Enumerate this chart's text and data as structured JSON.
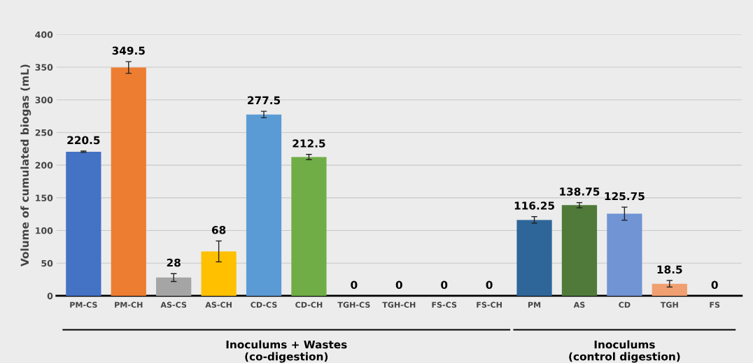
{
  "chart_data": {
    "type": "bar",
    "ylabel": "Volume of cumulated biogas (mL)",
    "categories": [
      "PM-CS",
      "PM-CH",
      "AS-CS",
      "AS-CH",
      "CD-CS",
      "CD-CH",
      "TGH-CS",
      "TGH-CH",
      "FS-CS",
      "FS-CH",
      "PM",
      "AS",
      "CD",
      "TGH",
      "FS"
    ],
    "values": [
      220.5,
      349.5,
      28,
      68,
      277.5,
      212.5,
      0,
      0,
      0,
      0,
      116.25,
      138.75,
      125.75,
      18.5,
      0
    ],
    "colors": [
      "#4472c4",
      "#ed7d31",
      "#a5a5a5",
      "#ffc000",
      "#5b9bd5",
      "#70ad47",
      "#4472c4",
      "#ed7d31",
      "#a5a5a5",
      "#ffc000",
      "#2f6699",
      "#507a3a",
      "#7094d4",
      "#f0a070",
      "#808080"
    ],
    "errors": [
      1,
      9,
      6,
      16,
      5,
      4,
      null,
      null,
      null,
      null,
      5,
      4,
      10,
      5,
      null
    ],
    "data_labels": true,
    "ylim": [
      0,
      400
    ],
    "yticks": [
      0,
      50,
      100,
      150,
      200,
      250,
      300,
      350,
      400
    ],
    "grid": "y",
    "annotations": [
      "Inoculums + Wastes\n(co-digestion)",
      "Inoculums\n(control digestion)"
    ]
  }
}
